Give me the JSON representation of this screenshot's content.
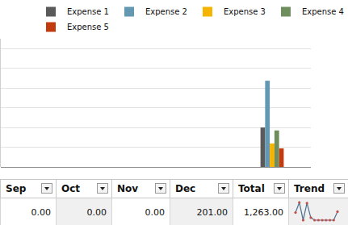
{
  "chart_data": {
    "type": "bar",
    "categories": [
      null,
      null,
      null,
      null
    ],
    "series": [
      {
        "name": "Expense 1",
        "color": "#5a5a5a",
        "values": [
          0,
          0,
          0,
          200
        ]
      },
      {
        "name": "Expense 2",
        "color": "#6497b1",
        "values": [
          0,
          0,
          0,
          437
        ]
      },
      {
        "name": "Expense 3",
        "color": "#f5b400",
        "values": [
          0,
          0,
          0,
          119
        ]
      },
      {
        "name": "Expense 4",
        "color": "#6e8e5e",
        "values": [
          0,
          0,
          0,
          185
        ]
      },
      {
        "name": "Expense 5",
        "color": "#c23b0f",
        "values": [
          0,
          0,
          0,
          94
        ]
      }
    ],
    "ylim": [
      0,
      650
    ],
    "yticks": [
      0,
      100,
      200,
      300,
      400,
      500,
      600
    ],
    "grid": true,
    "tick_labels": false,
    "legend": "top right"
  },
  "table": {
    "header": [
      "Sep",
      "Oct",
      "Nov",
      "Dec",
      "Total",
      "Trend"
    ],
    "rows": [
      [
        "0.00",
        "0.00",
        "0.00",
        "201.00",
        "1,263.00"
      ]
    ],
    "trend": [
      180,
      420,
      0,
      402,
      60,
      0,
      0,
      0,
      0,
      0,
      0,
      201
    ]
  }
}
